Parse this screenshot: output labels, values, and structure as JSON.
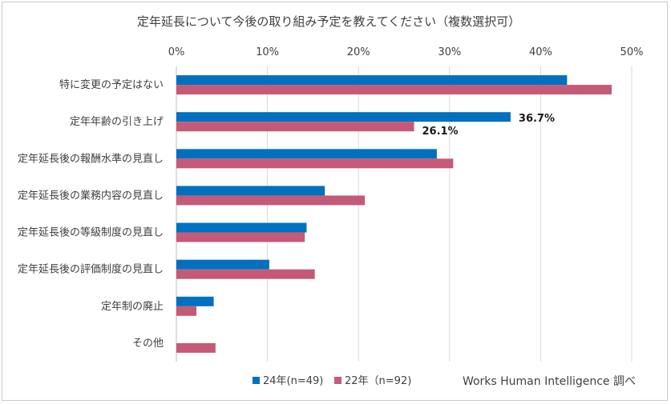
{
  "chart_data": {
    "type": "bar",
    "orientation": "horizontal",
    "title": "定年延長について今後の取り組み予定を教えてください（複数選択可）",
    "categories": [
      "特に変更の予定はない",
      "定年年齢の引き上げ",
      "定年延長後の報酬水準の見直し",
      "定年延長後の業務内容の見直し",
      "定年延長後の等級制度の見直し",
      "定年延長後の評価制度の見直し",
      "定年制の廃止",
      "その他"
    ],
    "series": [
      {
        "name": "24年(n=49)",
        "color": "#0070c0",
        "values": [
          42.9,
          36.7,
          28.6,
          16.3,
          14.3,
          10.2,
          4.1,
          0.0
        ]
      },
      {
        "name": "22年（n=92)",
        "color": "#c55a78",
        "values": [
          47.8,
          26.1,
          30.4,
          20.7,
          14.1,
          15.2,
          2.2,
          4.3
        ]
      }
    ],
    "xlim": [
      0,
      50
    ],
    "xticks": [
      "0%",
      "10%",
      "20%",
      "30%",
      "40%",
      "50%"
    ],
    "data_labels": [
      {
        "series": 0,
        "category": 1,
        "text": "36.7%"
      },
      {
        "series": 1,
        "category": 1,
        "text": "26.1%"
      }
    ],
    "grid": true,
    "legend_position": "bottom",
    "source_note": "Works Human Intelligence 調べ"
  }
}
